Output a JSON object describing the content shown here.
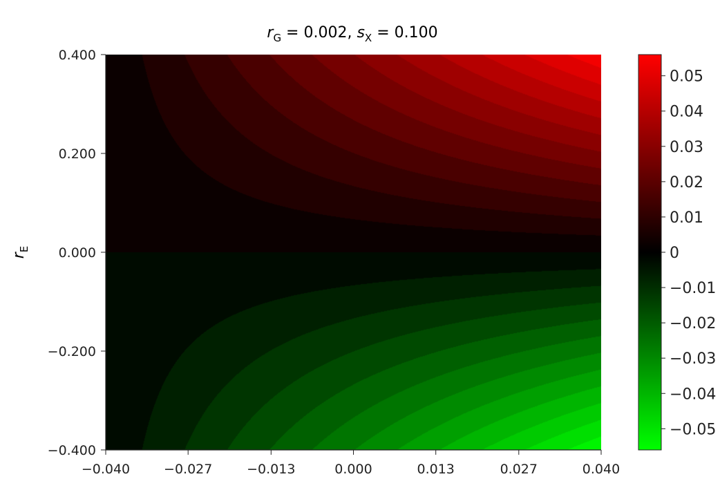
{
  "chart_data": {
    "type": "heatmap",
    "title": {
      "r_symbol": "r",
      "r_sub": "G",
      "r_value": " = 0.002, ",
      "s_symbol": "s",
      "s_sub": "X",
      "s_value": " = 0.100"
    },
    "ylabel": {
      "symbol": "r",
      "sub": "E"
    },
    "xlim": [
      -0.04,
      0.04
    ],
    "ylim": [
      -0.4,
      0.4
    ],
    "x_ticks": [
      "−0.040",
      "−0.027",
      "−0.013",
      "0.000",
      "0.013",
      "0.027",
      "0.040"
    ],
    "x_tick_values": [
      -0.04,
      -0.0267,
      -0.0133,
      0.0,
      0.0133,
      0.0267,
      0.04
    ],
    "y_ticks": [
      "0.400",
      "0.200",
      "0.000",
      "−0.200",
      "−0.400"
    ],
    "y_tick_values": [
      0.4,
      0.2,
      0.0,
      -0.2,
      -0.4
    ],
    "colorbar": {
      "range": [
        -0.056,
        0.056
      ],
      "ticks": [
        "0.05",
        "0.04",
        "0.03",
        "0.02",
        "0.01",
        "0",
        "−0.01",
        "−0.02",
        "−0.03",
        "−0.04",
        "−0.05"
      ],
      "tick_values": [
        0.05,
        0.04,
        0.03,
        0.02,
        0.01,
        0,
        -0.01,
        -0.02,
        -0.03,
        -0.04,
        -0.05
      ],
      "positive_color": "#ff0000",
      "zero_color": "#000000",
      "negative_color": "#00ff00"
    },
    "contour_levels": 24,
    "grid": false
  }
}
